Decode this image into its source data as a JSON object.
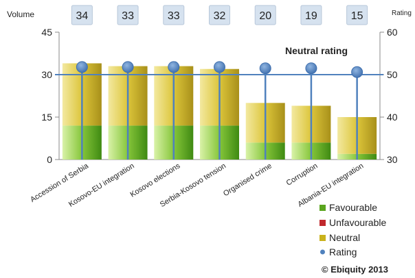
{
  "chart_data": {
    "type": "bar",
    "title": "",
    "ylabel_left": "Volume",
    "ylabel_right": "Rating",
    "ylim_left": [
      0,
      45
    ],
    "yticks_left": [
      "0",
      "15",
      "30",
      "45"
    ],
    "ylim_right": [
      30,
      60
    ],
    "yticks_right": [
      "30",
      "40",
      "50",
      "60"
    ],
    "categories": [
      "Accession of Serbia",
      "Kosovo-EU integration",
      "Kosovo elections",
      "Serbia-Kosovo tension",
      "Organised crime",
      "Corruption",
      "Albania-EU integration"
    ],
    "totals": [
      "34",
      "33",
      "33",
      "32",
      "20",
      "19",
      "15"
    ],
    "series": [
      {
        "name": "Favourable",
        "values": [
          12,
          12,
          12,
          12,
          6,
          6,
          2
        ]
      },
      {
        "name": "Unfavourable",
        "values": [
          0,
          0,
          0,
          0,
          0,
          0,
          0
        ]
      },
      {
        "name": "Neutral",
        "values": [
          22,
          21,
          21,
          20,
          14,
          13,
          13
        ]
      }
    ],
    "rating": {
      "name": "Rating",
      "values": [
        51.8,
        51.8,
        51.8,
        51.8,
        51.5,
        51.5,
        50.6
      ]
    },
    "neutral_rating": {
      "label": "Neutral rating",
      "value": 50
    },
    "legend_position": "bottom-right",
    "colors": {
      "favourable": "#5aa51e",
      "unfavourable": "#c0282d",
      "neutral": "#c9b21c",
      "rating": "#4f81bd",
      "value_box": "#d6e2ef"
    }
  },
  "copyright": "© Ebiquity  2013"
}
